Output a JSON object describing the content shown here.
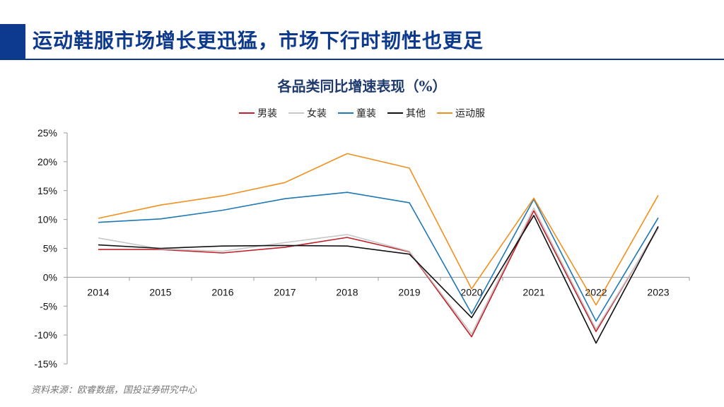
{
  "slide": {
    "title": "运动鞋服市场增长更迅猛，市场下行时韧性也更足",
    "source": "资料来源：欧睿数据，国投证券研究中心",
    "accent_color": "#0d3a8c"
  },
  "chart_data": {
    "type": "line",
    "title": "各品类同比增速表现（%）",
    "categories": [
      "2014",
      "2015",
      "2016",
      "2017",
      "2018",
      "2019",
      "2020",
      "2021",
      "2022",
      "2023"
    ],
    "y_ticks": [
      "25%",
      "20%",
      "15%",
      "10%",
      "5%",
      "0%",
      "-5%",
      "-10%",
      "-15%"
    ],
    "ylim": [
      -15,
      25
    ],
    "grid": false,
    "legend_position": "top-center",
    "series": [
      {
        "name": "男装",
        "color": "#c0202a",
        "values": [
          4.8,
          4.8,
          4.2,
          5.2,
          6.9,
          4.4,
          -10.3,
          11.5,
          -9.4,
          8.6
        ]
      },
      {
        "name": "女装",
        "color": "#c8c8c8",
        "values": [
          6.8,
          4.9,
          4.5,
          6.0,
          7.4,
          4.5,
          -9.8,
          12.0,
          -9.0,
          8.4
        ]
      },
      {
        "name": "童装",
        "color": "#1f77b4",
        "values": [
          9.5,
          10.1,
          11.6,
          13.6,
          14.7,
          12.9,
          -6.3,
          13.5,
          -7.6,
          10.3
        ]
      },
      {
        "name": "其他",
        "color": "#111111",
        "values": [
          5.6,
          5.0,
          5.4,
          5.5,
          5.4,
          4.0,
          -7.0,
          10.7,
          -11.4,
          8.8
        ]
      },
      {
        "name": "运动服",
        "color": "#f0901e",
        "values": [
          10.2,
          12.5,
          14.1,
          16.4,
          21.4,
          18.9,
          -2.0,
          13.7,
          -4.8,
          14.2
        ]
      }
    ]
  }
}
